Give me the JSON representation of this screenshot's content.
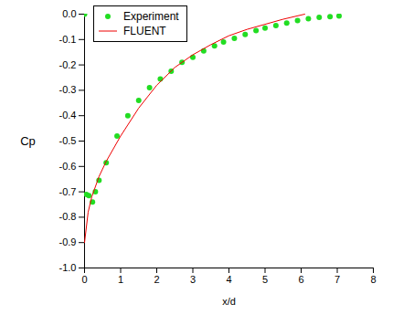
{
  "chart_data": {
    "type": "scatter",
    "x_label": "x/d",
    "y_label": "Cp",
    "xlim": [
      0,
      8
    ],
    "xticks": [
      0,
      1,
      2,
      3,
      4,
      5,
      6,
      7,
      8
    ],
    "ylim": [
      -1.0,
      0.0
    ],
    "yticks": [
      {
        "value": -1.0,
        "label": "-1.0"
      },
      {
        "value": -0.9,
        "label": "-0.9"
      },
      {
        "value": -0.8,
        "label": "-0.8"
      },
      {
        "value": -0.7,
        "label": "-0.7"
      },
      {
        "value": -0.6,
        "label": "-0.6"
      },
      {
        "value": -0.5,
        "label": "-0.5"
      },
      {
        "value": -0.4,
        "label": "-0.4"
      },
      {
        "value": -0.3,
        "label": "-0.3"
      },
      {
        "value": -0.2,
        "label": "-0.2"
      },
      {
        "value": -0.1,
        "label": "-0.1"
      },
      {
        "value": 0.0,
        "label": "0.0"
      }
    ],
    "grid": false,
    "legend": "top-left",
    "series": [
      {
        "name": "Experiment",
        "type": "scatter",
        "marker": "circle",
        "color": "#22dd22",
        "x": [
          0,
          0.05,
          0.12,
          0.22,
          0.3,
          0.4,
          0.6,
          0.9,
          1.2,
          1.5,
          1.8,
          2.1,
          2.4,
          2.7,
          3.0,
          3.3,
          3.6,
          3.85,
          4.15,
          4.45,
          4.75,
          5.0,
          5.3,
          5.6,
          5.9,
          6.2,
          6.5,
          6.8,
          7.05
        ],
        "values": [
          0.0,
          -0.71,
          -0.715,
          -0.74,
          -0.7,
          -0.655,
          -0.585,
          -0.48,
          -0.4,
          -0.34,
          -0.29,
          -0.255,
          -0.225,
          -0.19,
          -0.17,
          -0.145,
          -0.125,
          -0.11,
          -0.095,
          -0.08,
          -0.065,
          -0.055,
          -0.045,
          -0.035,
          -0.025,
          -0.018,
          -0.013,
          -0.01,
          -0.007
        ]
      },
      {
        "name": "FLUENT",
        "type": "line",
        "line_style": "solid",
        "color": "#ee0000",
        "x": [
          0,
          0.05,
          0.1,
          0.2,
          0.4,
          0.6,
          1.0,
          1.5,
          2.0,
          2.5,
          3.0,
          3.5,
          4.0,
          4.5,
          5.0,
          5.5,
          6.1
        ],
        "values": [
          -0.9,
          -0.84,
          -0.78,
          -0.72,
          -0.64,
          -0.58,
          -0.48,
          -0.37,
          -0.28,
          -0.21,
          -0.16,
          -0.12,
          -0.085,
          -0.06,
          -0.04,
          -0.02,
          0.0
        ]
      }
    ]
  }
}
